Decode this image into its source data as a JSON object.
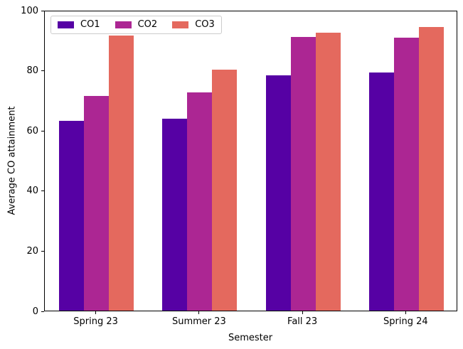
{
  "chart_data": {
    "type": "bar",
    "title": "",
    "xlabel": "Semester",
    "ylabel": "Average CO attainment",
    "categories": [
      "Spring 23",
      "Summer 23",
      "Fall 23",
      "Spring 24"
    ],
    "series": [
      {
        "name": "CO1",
        "color": "#5601A4",
        "values": [
          63.1,
          63.9,
          78.3,
          79.2
        ]
      },
      {
        "name": "CO2",
        "color": "#AC2693",
        "values": [
          71.4,
          72.6,
          91.0,
          90.9
        ]
      },
      {
        "name": "CO3",
        "color": "#E4695E",
        "values": [
          91.5,
          80.1,
          92.5,
          94.4
        ]
      }
    ],
    "ylim": [
      0,
      100
    ],
    "yticks": [
      0,
      20,
      40,
      60,
      80,
      100
    ],
    "grid": false,
    "legend_position": "upper left",
    "background_color": "#ffffff",
    "text_color": "#000000"
  }
}
